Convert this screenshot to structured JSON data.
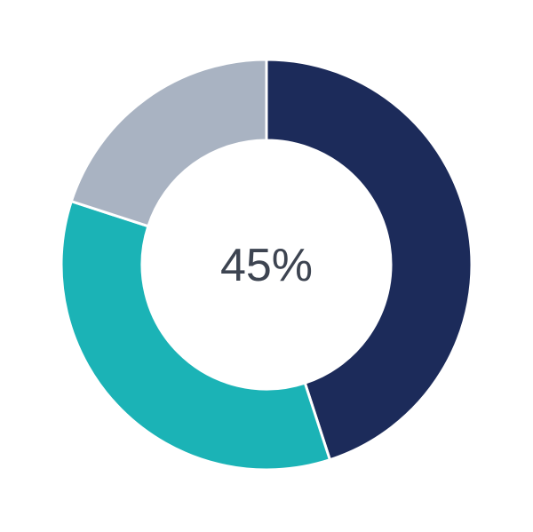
{
  "chart_data": {
    "type": "pie",
    "variant": "donut",
    "center_label": "45%",
    "values": [
      45,
      35,
      20
    ],
    "colors": [
      "#1c2b5a",
      "#1bb3b6",
      "#a9b3c2"
    ],
    "start": "top",
    "direction": "clockwise",
    "legend": "none"
  }
}
